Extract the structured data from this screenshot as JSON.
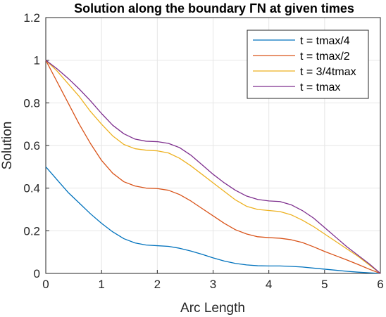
{
  "chart_data": {
    "type": "line",
    "title": "Solution along the boundary  ΓN at given times",
    "xlabel": "Arc Length",
    "ylabel": "Solution",
    "xlim": [
      0,
      6
    ],
    "ylim": [
      0,
      1.2
    ],
    "xticks": [
      "0",
      "1",
      "2",
      "3",
      "4",
      "5",
      "6"
    ],
    "yticks": [
      "0",
      "0.2",
      "0.4",
      "0.6",
      "0.8",
      "1",
      "1.2"
    ],
    "grid": true,
    "legend_position": "top-right",
    "x": [
      0,
      0.2,
      0.4,
      0.6,
      0.8,
      1.0,
      1.2,
      1.4,
      1.6,
      1.8,
      2.0,
      2.2,
      2.4,
      2.6,
      2.8,
      3.0,
      3.2,
      3.4,
      3.6,
      3.8,
      4.0,
      4.2,
      4.4,
      4.6,
      4.8,
      5.0,
      5.2,
      5.4,
      5.6,
      5.8,
      6.0
    ],
    "series": [
      {
        "name": "t = tmax/4",
        "color": "#0072BD",
        "values": [
          0.5,
          0.44,
          0.38,
          0.33,
          0.28,
          0.235,
          0.195,
          0.163,
          0.143,
          0.133,
          0.13,
          0.127,
          0.118,
          0.105,
          0.09,
          0.073,
          0.058,
          0.047,
          0.04,
          0.036,
          0.035,
          0.035,
          0.033,
          0.03,
          0.025,
          0.02,
          0.015,
          0.01,
          0.006,
          0.003,
          0.0
        ]
      },
      {
        "name": "t = tmax/2",
        "color": "#D95319",
        "values": [
          1.0,
          0.9,
          0.8,
          0.7,
          0.61,
          0.53,
          0.47,
          0.43,
          0.41,
          0.4,
          0.398,
          0.39,
          0.37,
          0.34,
          0.305,
          0.27,
          0.235,
          0.205,
          0.185,
          0.172,
          0.168,
          0.165,
          0.158,
          0.145,
          0.125,
          0.103,
          0.083,
          0.063,
          0.042,
          0.02,
          0.0
        ]
      },
      {
        "name": "t = 3/4tmax",
        "color": "#EDB120",
        "values": [
          1.0,
          0.95,
          0.89,
          0.83,
          0.76,
          0.7,
          0.645,
          0.605,
          0.585,
          0.578,
          0.575,
          0.565,
          0.54,
          0.505,
          0.465,
          0.425,
          0.385,
          0.345,
          0.315,
          0.3,
          0.295,
          0.29,
          0.275,
          0.25,
          0.22,
          0.185,
          0.15,
          0.115,
          0.08,
          0.04,
          0.0
        ]
      },
      {
        "name": "t = tmax",
        "color": "#7E2F8E",
        "values": [
          1.0,
          0.96,
          0.915,
          0.865,
          0.81,
          0.75,
          0.695,
          0.655,
          0.63,
          0.62,
          0.618,
          0.61,
          0.59,
          0.555,
          0.51,
          0.465,
          0.425,
          0.39,
          0.363,
          0.347,
          0.34,
          0.337,
          0.322,
          0.295,
          0.26,
          0.215,
          0.17,
          0.125,
          0.085,
          0.045,
          0.0
        ]
      }
    ]
  }
}
